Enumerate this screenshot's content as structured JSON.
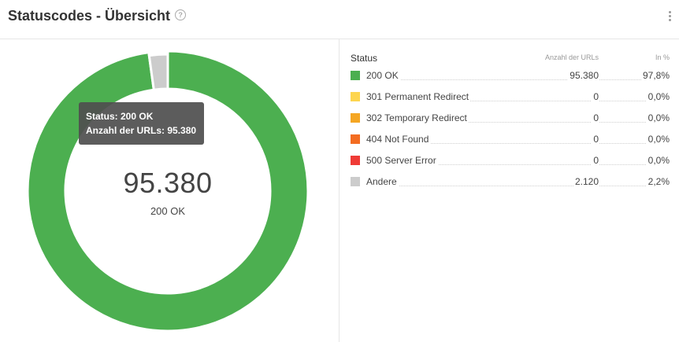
{
  "header": {
    "title": "Statuscodes - Übersicht",
    "help_icon": "question-circle-icon",
    "menu_icon": "vertical-ellipsis-icon"
  },
  "center": {
    "value": "95.380",
    "label": "200 OK"
  },
  "tooltip": {
    "line1": "Status: 200 OK",
    "line2": "Anzahl der URLs: 95.380"
  },
  "legend": {
    "col_status": "Status",
    "col_count": "Anzahl der URLs",
    "col_pct": "In %",
    "rows": [
      {
        "label": "200 OK",
        "count": "95.380",
        "pct": "97,8%",
        "color": "#4caf50"
      },
      {
        "label": "301 Permanent Redirect",
        "count": "0",
        "pct": "0,0%",
        "color": "#fdd54f"
      },
      {
        "label": "302 Temporary Redirect",
        "count": "0",
        "pct": "0,0%",
        "color": "#f5a623"
      },
      {
        "label": "404 Not Found",
        "count": "0",
        "pct": "0,0%",
        "color": "#f36c21"
      },
      {
        "label": "500 Server Error",
        "count": "0",
        "pct": "0,0%",
        "color": "#ef3b36"
      },
      {
        "label": "Andere",
        "count": "2.120",
        "pct": "2,2%",
        "color": "#cccccc"
      }
    ]
  },
  "chart_data": {
    "type": "pie",
    "categories": [
      "200 OK",
      "301 Permanent Redirect",
      "302 Temporary Redirect",
      "404 Not Found",
      "500 Server Error",
      "Andere"
    ],
    "values": [
      95380,
      0,
      0,
      0,
      0,
      2120
    ],
    "colors": [
      "#4caf50",
      "#fdd54f",
      "#f5a623",
      "#f36c21",
      "#ef3b36",
      "#cccccc"
    ],
    "donut": true,
    "highlighted": "Andere"
  }
}
